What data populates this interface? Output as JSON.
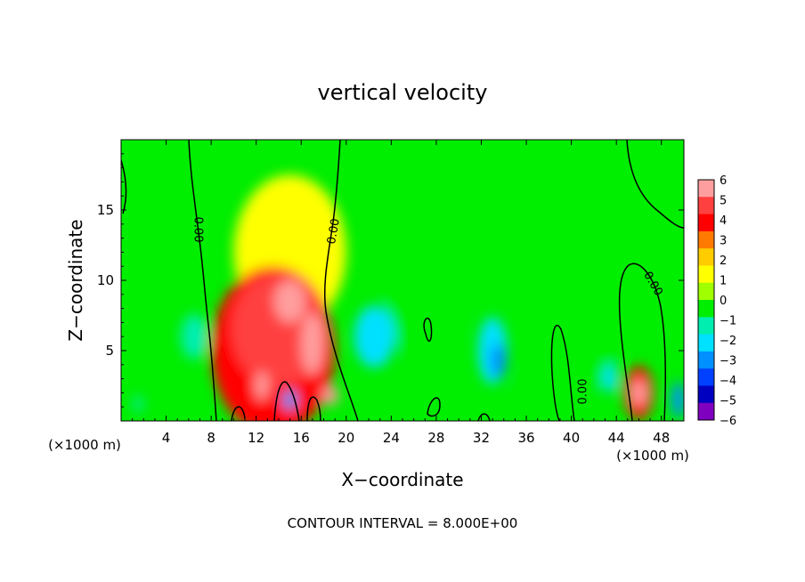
{
  "chart_data": {
    "type": "heatmap",
    "title": "vertical velocity",
    "xlabel": "X−coordinate",
    "ylabel": "Z−coordinate",
    "x_unit": "(×1000 m)",
    "xlim": [
      0,
      50
    ],
    "ylim": [
      0,
      20
    ],
    "x_ticks": [
      4,
      8,
      12,
      16,
      20,
      24,
      28,
      32,
      36,
      40,
      44,
      48
    ],
    "y_ticks": [
      5,
      10,
      15
    ],
    "footer": "CONTOUR INTERVAL = 8.000E+00",
    "contour_labels": [
      "0.00",
      "0.00",
      "0.00",
      "0.00"
    ],
    "colorbar": {
      "levels": [
        6,
        5,
        4,
        3,
        2,
        1,
        0,
        -1,
        -2,
        -3,
        -4,
        -5,
        -6
      ],
      "labels": [
        "6",
        "5",
        "4",
        "3",
        "2",
        "1",
        "0",
        "−1",
        "−2",
        "−3",
        "−4",
        "−5",
        "−6"
      ],
      "colors": [
        "#ff9e9e",
        "#ff4040",
        "#ff0000",
        "#ff7a00",
        "#ffcc00",
        "#ffff00",
        "#a0ff00",
        "#00ee00",
        "#00eeb0",
        "#00e0ff",
        "#0090ff",
        "#0040ff",
        "#0000c0",
        "#8000c0"
      ]
    },
    "background_color": "#00ee00",
    "features": [
      {
        "x": 15,
        "z": 8.5,
        "value": 6,
        "rx": 1.4,
        "rz": 1.5
      },
      {
        "x": 17,
        "z": 5.5,
        "value": 6,
        "rx": 1.0,
        "rz": 2.2
      },
      {
        "x": 14,
        "z": 6.5,
        "value": 5,
        "rx": 4.2,
        "rz": 4.0
      },
      {
        "x": 13.5,
        "z": 5,
        "value": 4,
        "rx": 5.5,
        "rz": 6.0
      },
      {
        "x": 12.5,
        "z": 2.5,
        "value": 6,
        "rx": 0.6,
        "rz": 1.0
      },
      {
        "x": 18.6,
        "z": 1.8,
        "value": 6,
        "rx": 0.7,
        "rz": 0.7
      },
      {
        "x": 10.5,
        "z": 3,
        "value": 3,
        "rx": 1.0,
        "rz": 1.5
      },
      {
        "x": 15,
        "z": 12,
        "value": 1,
        "rx": 5.0,
        "rz": 5.5
      },
      {
        "x": 22.5,
        "z": 6,
        "value": -3,
        "rx": 1.8,
        "rz": 2.2
      },
      {
        "x": 33,
        "z": 5,
        "value": -3,
        "rx": 1.3,
        "rz": 2.4
      },
      {
        "x": 33.5,
        "z": 4.3,
        "value": -4,
        "rx": 0.7,
        "rz": 1.2
      },
      {
        "x": 6.5,
        "z": 6,
        "value": -2,
        "rx": 1.2,
        "rz": 1.6
      },
      {
        "x": 46,
        "z": 2,
        "value": 6,
        "rx": 0.7,
        "rz": 0.9
      },
      {
        "x": 46,
        "z": 2,
        "value": 4,
        "rx": 1.3,
        "rz": 1.9
      },
      {
        "x": 43.5,
        "z": 3,
        "value": -3,
        "rx": 0.6,
        "rz": 1.0
      },
      {
        "x": 49.5,
        "z": 1.5,
        "value": -4,
        "rx": 0.6,
        "rz": 1.3
      },
      {
        "x": 15,
        "z": 1.5,
        "value": -4,
        "rx": 0.6,
        "rz": 0.7
      },
      {
        "x": 1.5,
        "z": 1.2,
        "value": -2,
        "rx": 0.4,
        "rz": 0.6
      },
      {
        "x": 27,
        "z": 9,
        "value": -1,
        "rx": 3.5,
        "rz": 5.0
      },
      {
        "x": 41.5,
        "z": 7,
        "value": -1,
        "rx": 3.0,
        "rz": 5.0
      },
      {
        "x": 37,
        "z": 2,
        "value": -1,
        "rx": 2.0,
        "rz": 2.0
      }
    ]
  }
}
